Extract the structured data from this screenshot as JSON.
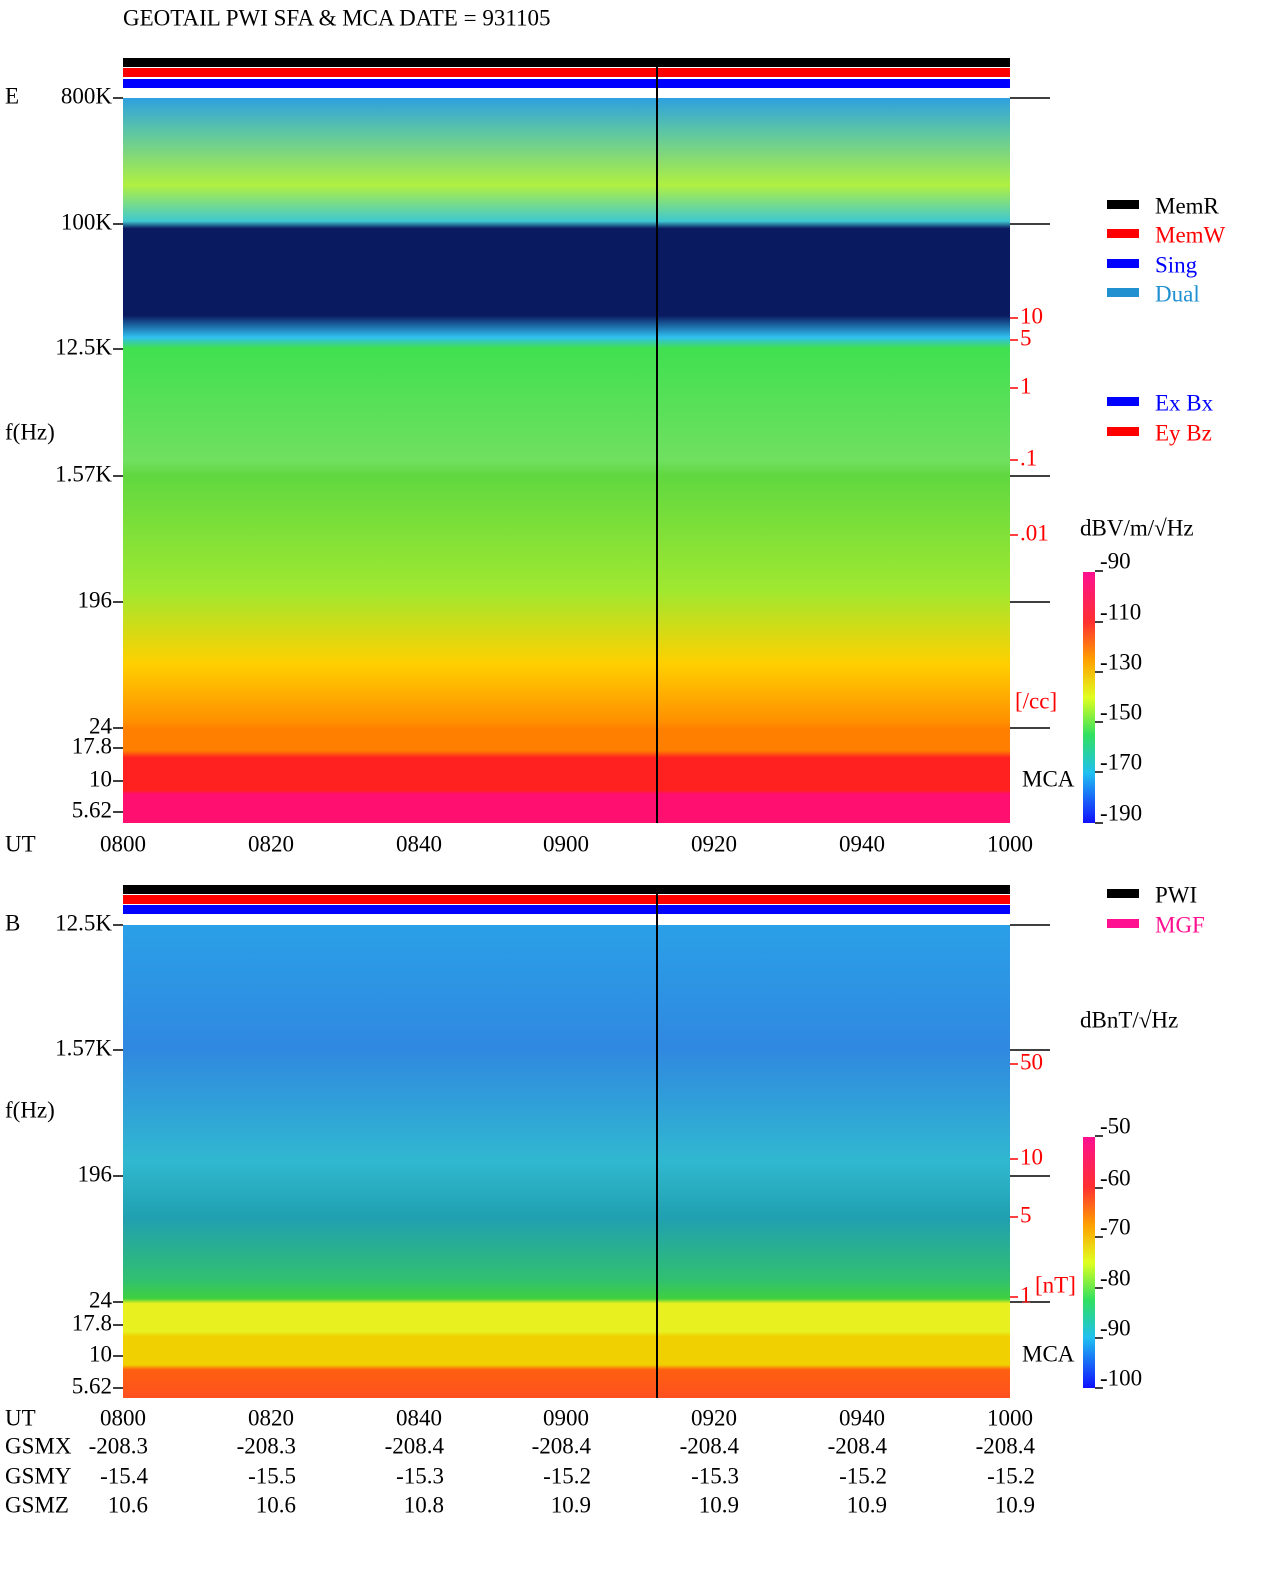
{
  "title": "GEOTAIL  PWI SFA & MCA   DATE = 931105",
  "panel_e": {
    "name": "E",
    "ylabel": "f(Hz)",
    "yticks": [
      "800K",
      "100K",
      "12.5K",
      "1.57K",
      "196",
      "24",
      "17.8",
      "10",
      "5.62"
    ],
    "xlabel": "UT",
    "xticks": [
      "0800",
      "0820",
      "0840",
      "0900",
      "0920",
      "0940",
      "1000"
    ],
    "density_ticks": [
      "10",
      "5",
      "1",
      ".1",
      ".01"
    ],
    "density_unit": "[/cc]",
    "mca": "MCA",
    "legend_mode": [
      {
        "name": "MemR",
        "color": "#000000"
      },
      {
        "name": "MemW",
        "color": "#ff0000"
      },
      {
        "name": "Sing",
        "color": "#0000ff"
      },
      {
        "name": "Dual",
        "color": "#2090d0"
      }
    ],
    "legend_axis": [
      {
        "name": "Ex Bx",
        "color": "#0000ff"
      },
      {
        "name": "Ey Bz",
        "color": "#ff0000"
      }
    ],
    "colorbar_title": "dBV/m/√Hz",
    "colorbar_ticks": [
      "-90",
      "-110",
      "-130",
      "-150",
      "-170",
      "-190"
    ]
  },
  "panel_b": {
    "name": "B",
    "ylabel": "f(Hz)",
    "yticks": [
      "12.5K",
      "1.57K",
      "196",
      "24",
      "17.8",
      "10",
      "5.62"
    ],
    "field_ticks": [
      "50",
      "10",
      "5",
      "1"
    ],
    "field_unit": "[nT]",
    "mca": "MCA",
    "legend": [
      {
        "name": "PWI",
        "color": "#000000"
      },
      {
        "name": "MGF",
        "color": "#ff1090"
      }
    ],
    "colorbar_title": "dBnT/√Hz",
    "colorbar_ticks": [
      "-50",
      "-60",
      "-70",
      "-80",
      "-90",
      "-100"
    ]
  },
  "orbit": {
    "labels": [
      "UT",
      "GSMX",
      "GSMY",
      "GSMZ"
    ],
    "ut": [
      "0800",
      "0820",
      "0840",
      "0900",
      "0920",
      "0940",
      "1000"
    ],
    "rows": [
      [
        "-208.3",
        "-208.3",
        "-208.4",
        "-208.4",
        "-208.4",
        "-208.4",
        "-208.4"
      ],
      [
        "-15.4",
        "-15.5",
        "-15.3",
        "-15.2",
        "-15.3",
        "-15.2",
        "-15.2"
      ],
      [
        "10.6",
        "10.6",
        "10.8",
        "10.9",
        "10.9",
        "10.9",
        "10.9"
      ]
    ]
  }
}
